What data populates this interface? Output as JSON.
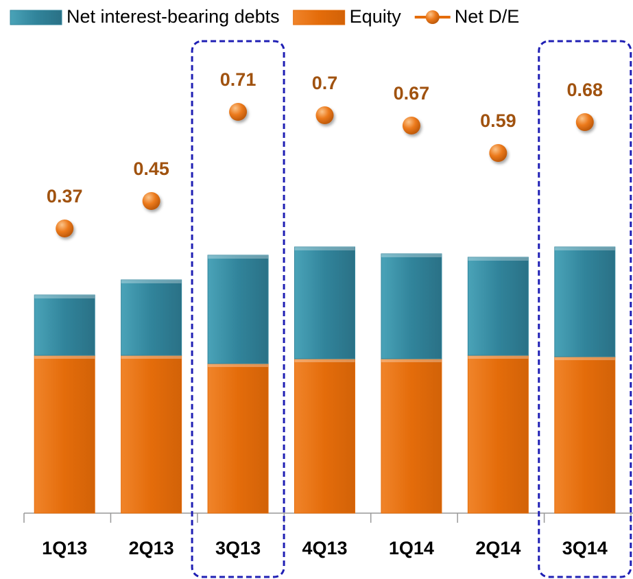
{
  "chart_data": {
    "type": "bar",
    "stacked": true,
    "categories": [
      "1Q13",
      "2Q13",
      "3Q13",
      "4Q13",
      "1Q14",
      "2Q14",
      "3Q14"
    ],
    "series": [
      {
        "name": "Net interest-bearing debts",
        "color": "#31849b",
        "values": [
          88,
          110,
          158,
          163,
          153,
          143,
          160
        ]
      },
      {
        "name": "Equity",
        "color": "#e46c0a",
        "values": [
          230,
          230,
          218,
          225,
          225,
          230,
          228
        ]
      },
      {
        "name": "Net D/E",
        "type": "scatter",
        "axis": "y2",
        "color": "#e46c0a",
        "label_color": "#a0520f",
        "values": [
          0.37,
          0.45,
          0.71,
          0.7,
          0.67,
          0.59,
          0.68
        ]
      }
    ],
    "ylim": [
      0,
      700
    ],
    "y2lim": [
      -0.46,
      0.94
    ],
    "highlight": [
      2,
      6
    ]
  }
}
